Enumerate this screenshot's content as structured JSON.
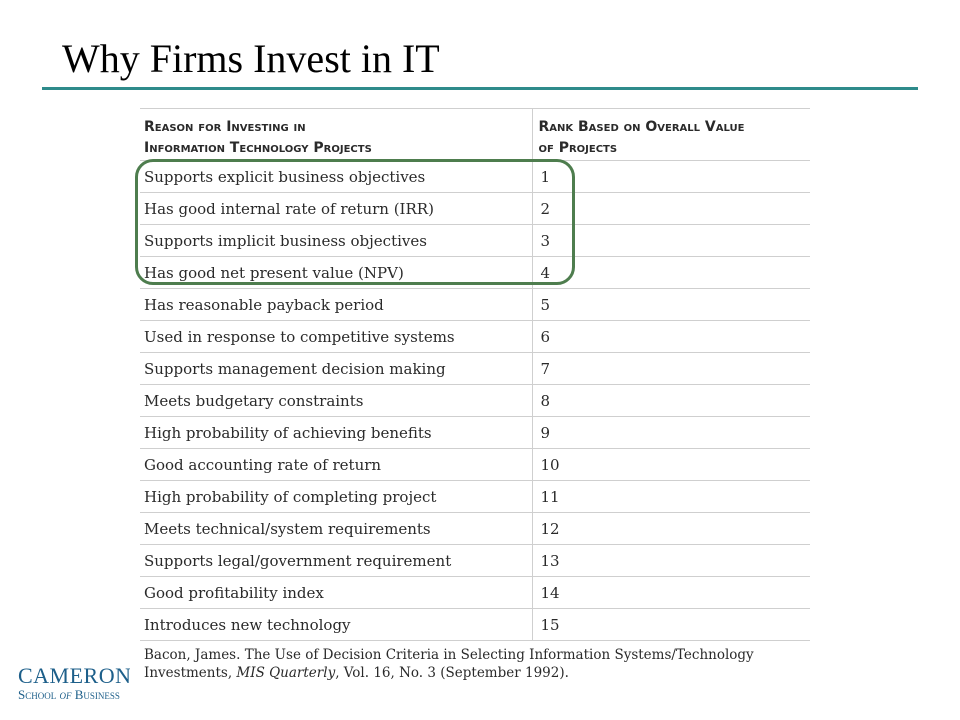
{
  "slide": {
    "title": "Why Firms Invest in IT"
  },
  "table": {
    "headers": {
      "reason_line1": "Reason for Investing in",
      "reason_line2": "Information Technology Projects",
      "rank_line1": "Rank Based on Overall Value",
      "rank_line2": "of Projects"
    },
    "rows": [
      {
        "reason": "Supports explicit business objectives",
        "rank": "1"
      },
      {
        "reason": "Has good internal rate of return (IRR)",
        "rank": "2"
      },
      {
        "reason": "Supports implicit business objectives",
        "rank": "3"
      },
      {
        "reason": "Has good net present value (NPV)",
        "rank": "4"
      },
      {
        "reason": "Has reasonable payback period",
        "rank": "5"
      },
      {
        "reason": "Used in response to competitive systems",
        "rank": "6"
      },
      {
        "reason": "Supports management decision making",
        "rank": "7"
      },
      {
        "reason": "Meets budgetary constraints",
        "rank": "8"
      },
      {
        "reason": "High probability of achieving benefits",
        "rank": "9"
      },
      {
        "reason": "Good accounting rate of return",
        "rank": "10"
      },
      {
        "reason": "High probability of completing project",
        "rank": "11"
      },
      {
        "reason": "Meets technical/system requirements",
        "rank": "12"
      },
      {
        "reason": "Supports legal/government requirement",
        "rank": "13"
      },
      {
        "reason": "Good profitability index",
        "rank": "14"
      },
      {
        "reason": "Introduces new technology",
        "rank": "15"
      }
    ],
    "highlight_color": "#4e7d4e"
  },
  "citation": {
    "prefix": "Bacon, James. The Use of Decision Criteria in Selecting Information Systems/Technology Investments, ",
    "journal": "MIS Quarterly",
    "suffix": ", Vol. 16, No. 3 (September 1992)."
  },
  "logo": {
    "name": "CAMERON",
    "school_pre": "School ",
    "school_of": "of",
    "school_post": " Business"
  },
  "colors": {
    "title_rule": "#2e8b8b",
    "logo": "#1d5f8a"
  }
}
